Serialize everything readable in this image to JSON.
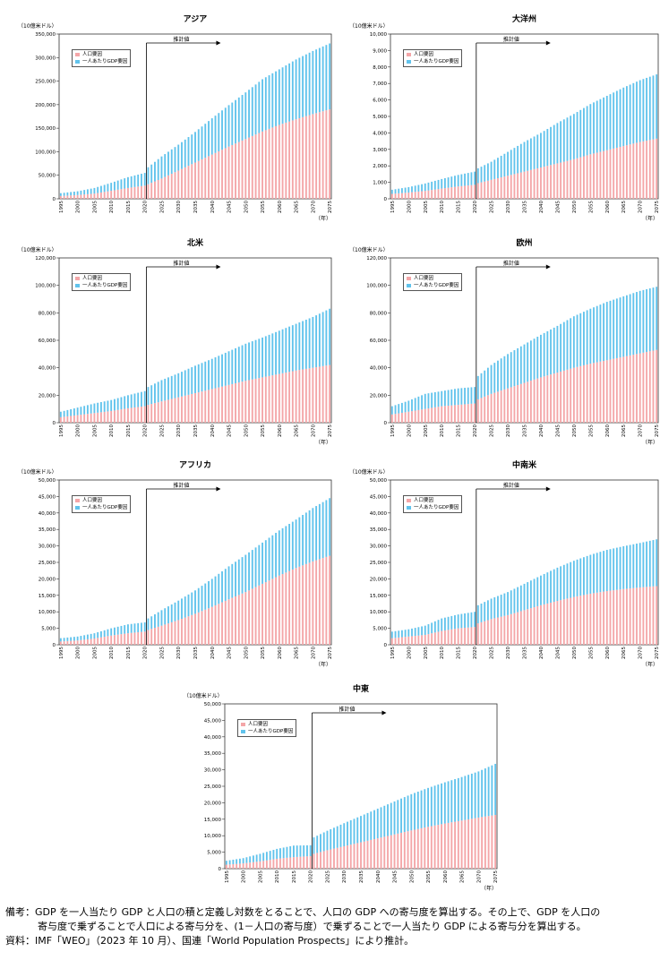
{
  "legend": {
    "pop_label": "人口要因",
    "gdppc_label": "一人あたりGDP要因",
    "pop_color": "#f4a6a8",
    "gdppc_color": "#61c3ec"
  },
  "unit_label": "（10億米ドル）",
  "x_unit_label": "（年）",
  "estimate_label": "推計値",
  "notes": {
    "line1": "備考：GDP を一人当たり GDP と人口の積と定義し対数をとることで、人口の GDP への寄与度を算出する。その上で、GDP を人口の",
    "line2": "寄与度で乗ずることで人口による寄与分を、(1－人口の寄与度）で乗ずることで一人当たり GDP による寄与分を算出する。",
    "line3": "資料：IMF「WEO」（2023 年 10 月）、国連「World Population Prospects」により推計。"
  },
  "chart_data": [
    {
      "type": "bar",
      "stacked": true,
      "title": "アジア",
      "x_start": 1995,
      "x_end": 2075,
      "estimate_start": 2021,
      "x_ticks": [
        1995,
        2000,
        2005,
        2010,
        2015,
        2020,
        2025,
        2030,
        2035,
        2040,
        2045,
        2050,
        2055,
        2060,
        2065,
        2070,
        2075
      ],
      "ylim": [
        0,
        350000
      ],
      "y_ticks": [
        0,
        50000,
        100000,
        150000,
        200000,
        250000,
        300000,
        350000
      ],
      "y_tick_labels": [
        "0",
        "50,000",
        "100,000",
        "150,000",
        "200,000",
        "250,000",
        "300,000",
        "350,000"
      ],
      "series": [
        {
          "name": "人口要因",
          "x": [
            1995,
            2000,
            2005,
            2010,
            2015,
            2020,
            2021,
            2025,
            2030,
            2035,
            2040,
            2045,
            2050,
            2055,
            2060,
            2065,
            2070,
            2075
          ],
          "values": [
            6000,
            8000,
            11000,
            17000,
            23000,
            28000,
            31000,
            43000,
            60000,
            77000,
            94000,
            111000,
            127000,
            143000,
            157000,
            169000,
            180000,
            190000
          ]
        },
        {
          "name": "一人あたりGDP要因",
          "x": [
            1995,
            2000,
            2005,
            2010,
            2015,
            2020,
            2021,
            2025,
            2030,
            2035,
            2040,
            2045,
            2050,
            2055,
            2060,
            2065,
            2070,
            2075
          ],
          "values": [
            6000,
            8000,
            12000,
            17000,
            23000,
            27000,
            36000,
            47000,
            55000,
            65000,
            77000,
            88000,
            99000,
            111000,
            118000,
            127000,
            134000,
            140000
          ]
        }
      ]
    },
    {
      "type": "bar",
      "stacked": true,
      "title": "大洋州",
      "x_start": 1995,
      "x_end": 2075,
      "estimate_start": 2021,
      "x_ticks": [
        1995,
        2000,
        2005,
        2010,
        2015,
        2020,
        2025,
        2030,
        2035,
        2040,
        2045,
        2050,
        2055,
        2060,
        2065,
        2070,
        2075
      ],
      "ylim": [
        0,
        10000
      ],
      "y_ticks": [
        0,
        1000,
        2000,
        3000,
        4000,
        5000,
        6000,
        7000,
        8000,
        9000,
        10000
      ],
      "y_tick_labels": [
        "0",
        "1,000",
        "2,000",
        "3,000",
        "4,000",
        "5,000",
        "6,000",
        "7,000",
        "8,000",
        "9,000",
        "10,000"
      ],
      "series": [
        {
          "name": "人口要因",
          "x": [
            1995,
            2000,
            2005,
            2010,
            2015,
            2020,
            2021,
            2025,
            2030,
            2035,
            2040,
            2045,
            2050,
            2055,
            2060,
            2065,
            2070,
            2075
          ],
          "values": [
            300,
            380,
            480,
            620,
            750,
            850,
            950,
            1150,
            1400,
            1650,
            1900,
            2150,
            2400,
            2700,
            2950,
            3200,
            3450,
            3650
          ]
        },
        {
          "name": "一人あたりGDP要因",
          "x": [
            1995,
            2000,
            2005,
            2010,
            2015,
            2020,
            2021,
            2025,
            2030,
            2035,
            2040,
            2045,
            2050,
            2055,
            2060,
            2065,
            2070,
            2075
          ],
          "values": [
            250,
            330,
            450,
            580,
            700,
            800,
            900,
            1100,
            1450,
            1800,
            2100,
            2450,
            2750,
            3050,
            3300,
            3550,
            3750,
            3900
          ]
        }
      ]
    },
    {
      "type": "bar",
      "stacked": true,
      "title": "北米",
      "x_start": 1995,
      "x_end": 2075,
      "estimate_start": 2021,
      "x_ticks": [
        1995,
        2000,
        2005,
        2010,
        2015,
        2020,
        2025,
        2030,
        2035,
        2040,
        2045,
        2050,
        2055,
        2060,
        2065,
        2070,
        2075
      ],
      "ylim": [
        0,
        120000
      ],
      "y_ticks": [
        0,
        20000,
        40000,
        60000,
        80000,
        100000,
        120000
      ],
      "y_tick_labels": [
        "0",
        "20,000",
        "40,000",
        "60,000",
        "80,000",
        "100,000",
        "120,000"
      ],
      "series": [
        {
          "name": "人口要因",
          "x": [
            1995,
            2000,
            2005,
            2010,
            2015,
            2020,
            2021,
            2025,
            2030,
            2035,
            2040,
            2045,
            2050,
            2055,
            2060,
            2065,
            2070,
            2075
          ],
          "values": [
            4000,
            5500,
            7000,
            8500,
            10500,
            12000,
            13000,
            15500,
            18500,
            21500,
            24500,
            27500,
            30500,
            33000,
            35500,
            38000,
            40000,
            42000
          ]
        },
        {
          "name": "一人あたりGDP要因",
          "x": [
            1995,
            2000,
            2005,
            2010,
            2015,
            2020,
            2021,
            2025,
            2030,
            2035,
            2040,
            2045,
            2050,
            2055,
            2060,
            2065,
            2070,
            2075
          ],
          "values": [
            4000,
            5500,
            7000,
            8000,
            9500,
            11000,
            13000,
            15500,
            17500,
            20000,
            22000,
            24500,
            27000,
            29000,
            31500,
            34000,
            37000,
            41000
          ]
        }
      ]
    },
    {
      "type": "bar",
      "stacked": true,
      "title": "欧州",
      "x_start": 1995,
      "x_end": 2075,
      "estimate_start": 2021,
      "x_ticks": [
        1995,
        2000,
        2005,
        2010,
        2015,
        2020,
        2025,
        2030,
        2035,
        2040,
        2045,
        2050,
        2055,
        2060,
        2065,
        2070,
        2075
      ],
      "ylim": [
        0,
        120000
      ],
      "y_ticks": [
        0,
        20000,
        40000,
        60000,
        80000,
        100000,
        120000
      ],
      "y_tick_labels": [
        "0",
        "20,000",
        "40,000",
        "60,000",
        "80,000",
        "100,000",
        "120,000"
      ],
      "series": [
        {
          "name": "人口要因",
          "x": [
            1995,
            2000,
            2005,
            2010,
            2015,
            2020,
            2021,
            2025,
            2030,
            2035,
            2040,
            2045,
            2050,
            2055,
            2060,
            2065,
            2070,
            2075
          ],
          "values": [
            6000,
            8000,
            10000,
            12000,
            13000,
            14000,
            17000,
            21000,
            25000,
            29000,
            33000,
            36500,
            40000,
            43000,
            45500,
            48000,
            50500,
            53000
          ]
        },
        {
          "name": "一人あたりGDP要因",
          "x": [
            1995,
            2000,
            2005,
            2010,
            2015,
            2020,
            2021,
            2025,
            2030,
            2035,
            2040,
            2045,
            2050,
            2055,
            2060,
            2065,
            2070,
            2075
          ],
          "values": [
            6000,
            8000,
            11000,
            11000,
            12000,
            12000,
            17000,
            21000,
            25000,
            28000,
            31000,
            34000,
            37500,
            40000,
            42500,
            44000,
            45500,
            46000
          ]
        }
      ]
    },
    {
      "type": "bar",
      "stacked": true,
      "title": "アフリカ",
      "x_start": 1995,
      "x_end": 2075,
      "estimate_start": 2021,
      "x_ticks": [
        1995,
        2000,
        2005,
        2010,
        2015,
        2020,
        2025,
        2030,
        2035,
        2040,
        2045,
        2050,
        2055,
        2060,
        2065,
        2070,
        2075
      ],
      "ylim": [
        0,
        50000
      ],
      "y_ticks": [
        0,
        5000,
        10000,
        15000,
        20000,
        25000,
        30000,
        35000,
        40000,
        45000,
        50000
      ],
      "y_tick_labels": [
        "0",
        "5,000",
        "10,000",
        "15,000",
        "20,000",
        "25,000",
        "30,000",
        "35,000",
        "40,000",
        "45,000",
        "50,000"
      ],
      "series": [
        {
          "name": "人口要因",
          "x": [
            1995,
            2000,
            2005,
            2010,
            2015,
            2020,
            2021,
            2025,
            2030,
            2035,
            2040,
            2045,
            2050,
            2055,
            2060,
            2065,
            2070,
            2075
          ],
          "values": [
            1000,
            1300,
            1900,
            2800,
            3500,
            4000,
            4500,
            5800,
            7500,
            9400,
            11500,
            13800,
            16000,
            18500,
            21000,
            23300,
            25300,
            27000
          ]
        },
        {
          "name": "一人あたりGDP要因",
          "x": [
            1995,
            2000,
            2005,
            2010,
            2015,
            2020,
            2021,
            2025,
            2030,
            2035,
            2040,
            2045,
            2050,
            2055,
            2060,
            2065,
            2070,
            2075
          ],
          "values": [
            1000,
            1200,
            1600,
            2200,
            2700,
            2800,
            3500,
            4700,
            5900,
            7100,
            8500,
            10000,
            11300,
            12500,
            13700,
            14700,
            16200,
            17500
          ]
        }
      ]
    },
    {
      "type": "bar",
      "stacked": true,
      "title": "中南米",
      "x_start": 1995,
      "x_end": 2075,
      "estimate_start": 2021,
      "x_ticks": [
        1995,
        2000,
        2005,
        2010,
        2015,
        2020,
        2025,
        2030,
        2035,
        2040,
        2045,
        2050,
        2055,
        2060,
        2065,
        2070,
        2075
      ],
      "ylim": [
        0,
        50000
      ],
      "y_ticks": [
        0,
        5000,
        10000,
        15000,
        20000,
        25000,
        30000,
        35000,
        40000,
        45000,
        50000
      ],
      "y_tick_labels": [
        "0",
        "5,000",
        "10,000",
        "15,000",
        "20,000",
        "25,000",
        "30,000",
        "35,000",
        "40,000",
        "45,000",
        "50,000"
      ],
      "series": [
        {
          "name": "人口要因",
          "x": [
            1995,
            2000,
            2005,
            2010,
            2015,
            2020,
            2021,
            2025,
            2030,
            2035,
            2040,
            2045,
            2050,
            2055,
            2060,
            2065,
            2070,
            2075
          ],
          "values": [
            2000,
            2500,
            3000,
            4200,
            5000,
            5400,
            6500,
            7800,
            9000,
            10500,
            12000,
            13300,
            14500,
            15500,
            16300,
            16900,
            17400,
            17800
          ]
        },
        {
          "name": "一人あたりGDP要因",
          "x": [
            1995,
            2000,
            2005,
            2010,
            2015,
            2020,
            2021,
            2025,
            2030,
            2035,
            2040,
            2045,
            2050,
            2055,
            2060,
            2065,
            2070,
            2075
          ],
          "values": [
            2000,
            2200,
            2800,
            3800,
            4200,
            4600,
            5500,
            6200,
            7000,
            8000,
            9000,
            10100,
            11000,
            11800,
            12500,
            13000,
            13500,
            14200
          ]
        }
      ]
    },
    {
      "type": "bar",
      "stacked": true,
      "title": "中東",
      "x_start": 1995,
      "x_end": 2075,
      "estimate_start": 2021,
      "x_ticks": [
        1995,
        2000,
        2005,
        2010,
        2015,
        2020,
        2025,
        2030,
        2035,
        2040,
        2045,
        2050,
        2055,
        2060,
        2065,
        2070,
        2075
      ],
      "ylim": [
        0,
        50000
      ],
      "y_ticks": [
        0,
        5000,
        10000,
        15000,
        20000,
        25000,
        30000,
        35000,
        40000,
        45000,
        50000
      ],
      "y_tick_labels": [
        "0",
        "5,000",
        "10,000",
        "15,000",
        "20,000",
        "25,000",
        "30,000",
        "35,000",
        "40,000",
        "45,000",
        "50,000"
      ],
      "series": [
        {
          "name": "人口要因",
          "x": [
            1995,
            2000,
            2005,
            2010,
            2015,
            2020,
            2021,
            2025,
            2030,
            2035,
            2040,
            2045,
            2050,
            2055,
            2060,
            2065,
            2070,
            2075
          ],
          "values": [
            1200,
            1600,
            2200,
            3000,
            3500,
            3800,
            4500,
            5600,
            6800,
            8000,
            9200,
            10400,
            11600,
            12700,
            13700,
            14600,
            15500,
            16300
          ]
        },
        {
          "name": "一人あたりGDP要因",
          "x": [
            1995,
            2000,
            2005,
            2010,
            2015,
            2020,
            2021,
            2025,
            2030,
            2035,
            2040,
            2045,
            2050,
            2055,
            2060,
            2065,
            2070,
            2075
          ],
          "values": [
            1200,
            1600,
            2300,
            3000,
            3500,
            3300,
            5000,
            5900,
            7000,
            8000,
            9000,
            10000,
            11000,
            11800,
            12500,
            13200,
            14000,
            15500
          ]
        }
      ]
    }
  ]
}
